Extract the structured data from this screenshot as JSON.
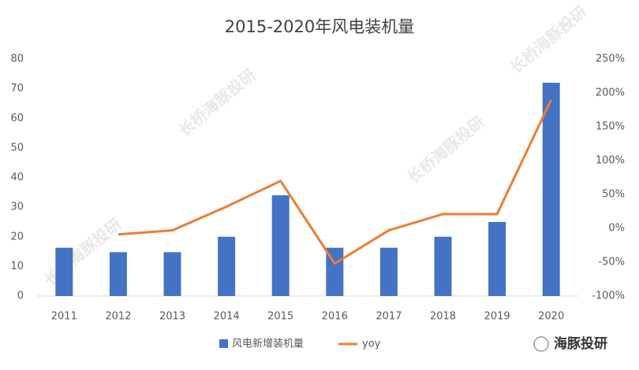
{
  "chart_data": {
    "type": "bar-line",
    "title": "2015-2020年风电装机量",
    "categories": [
      "2011",
      "2012",
      "2013",
      "2014",
      "2015",
      "2016",
      "2017",
      "2018",
      "2019",
      "2020"
    ],
    "series": [
      {
        "name": "风电新增装机量",
        "type": "bar",
        "color": "#4472c4",
        "values": [
          16.3,
          14.8,
          14.8,
          20,
          34,
          16.3,
          16.3,
          20,
          25,
          72
        ]
      },
      {
        "name": "yoy",
        "type": "line",
        "axis": "y2",
        "color": "#ed7d31",
        "values": [
          null,
          -9,
          -3,
          32,
          70,
          -52,
          -3,
          21,
          21,
          190
        ]
      }
    ],
    "ylim": [
      0,
      80
    ],
    "yticks": [
      0,
      10,
      20,
      30,
      40,
      50,
      60,
      70,
      80
    ],
    "y2lim": [
      -100,
      250
    ],
    "y2ticks": [
      {
        "value": -100,
        "label": "-100%"
      },
      {
        "value": -50,
        "label": "-50%"
      },
      {
        "value": 0,
        "label": "0%"
      },
      {
        "value": 50,
        "label": "50%"
      },
      {
        "value": 100,
        "label": "100%"
      },
      {
        "value": 150,
        "label": "150%"
      },
      {
        "value": 200,
        "label": "200%"
      },
      {
        "value": 250,
        "label": "250%"
      }
    ],
    "legend": "bottom",
    "watermark": "长桥海豚投研",
    "logo": "海豚投研"
  }
}
